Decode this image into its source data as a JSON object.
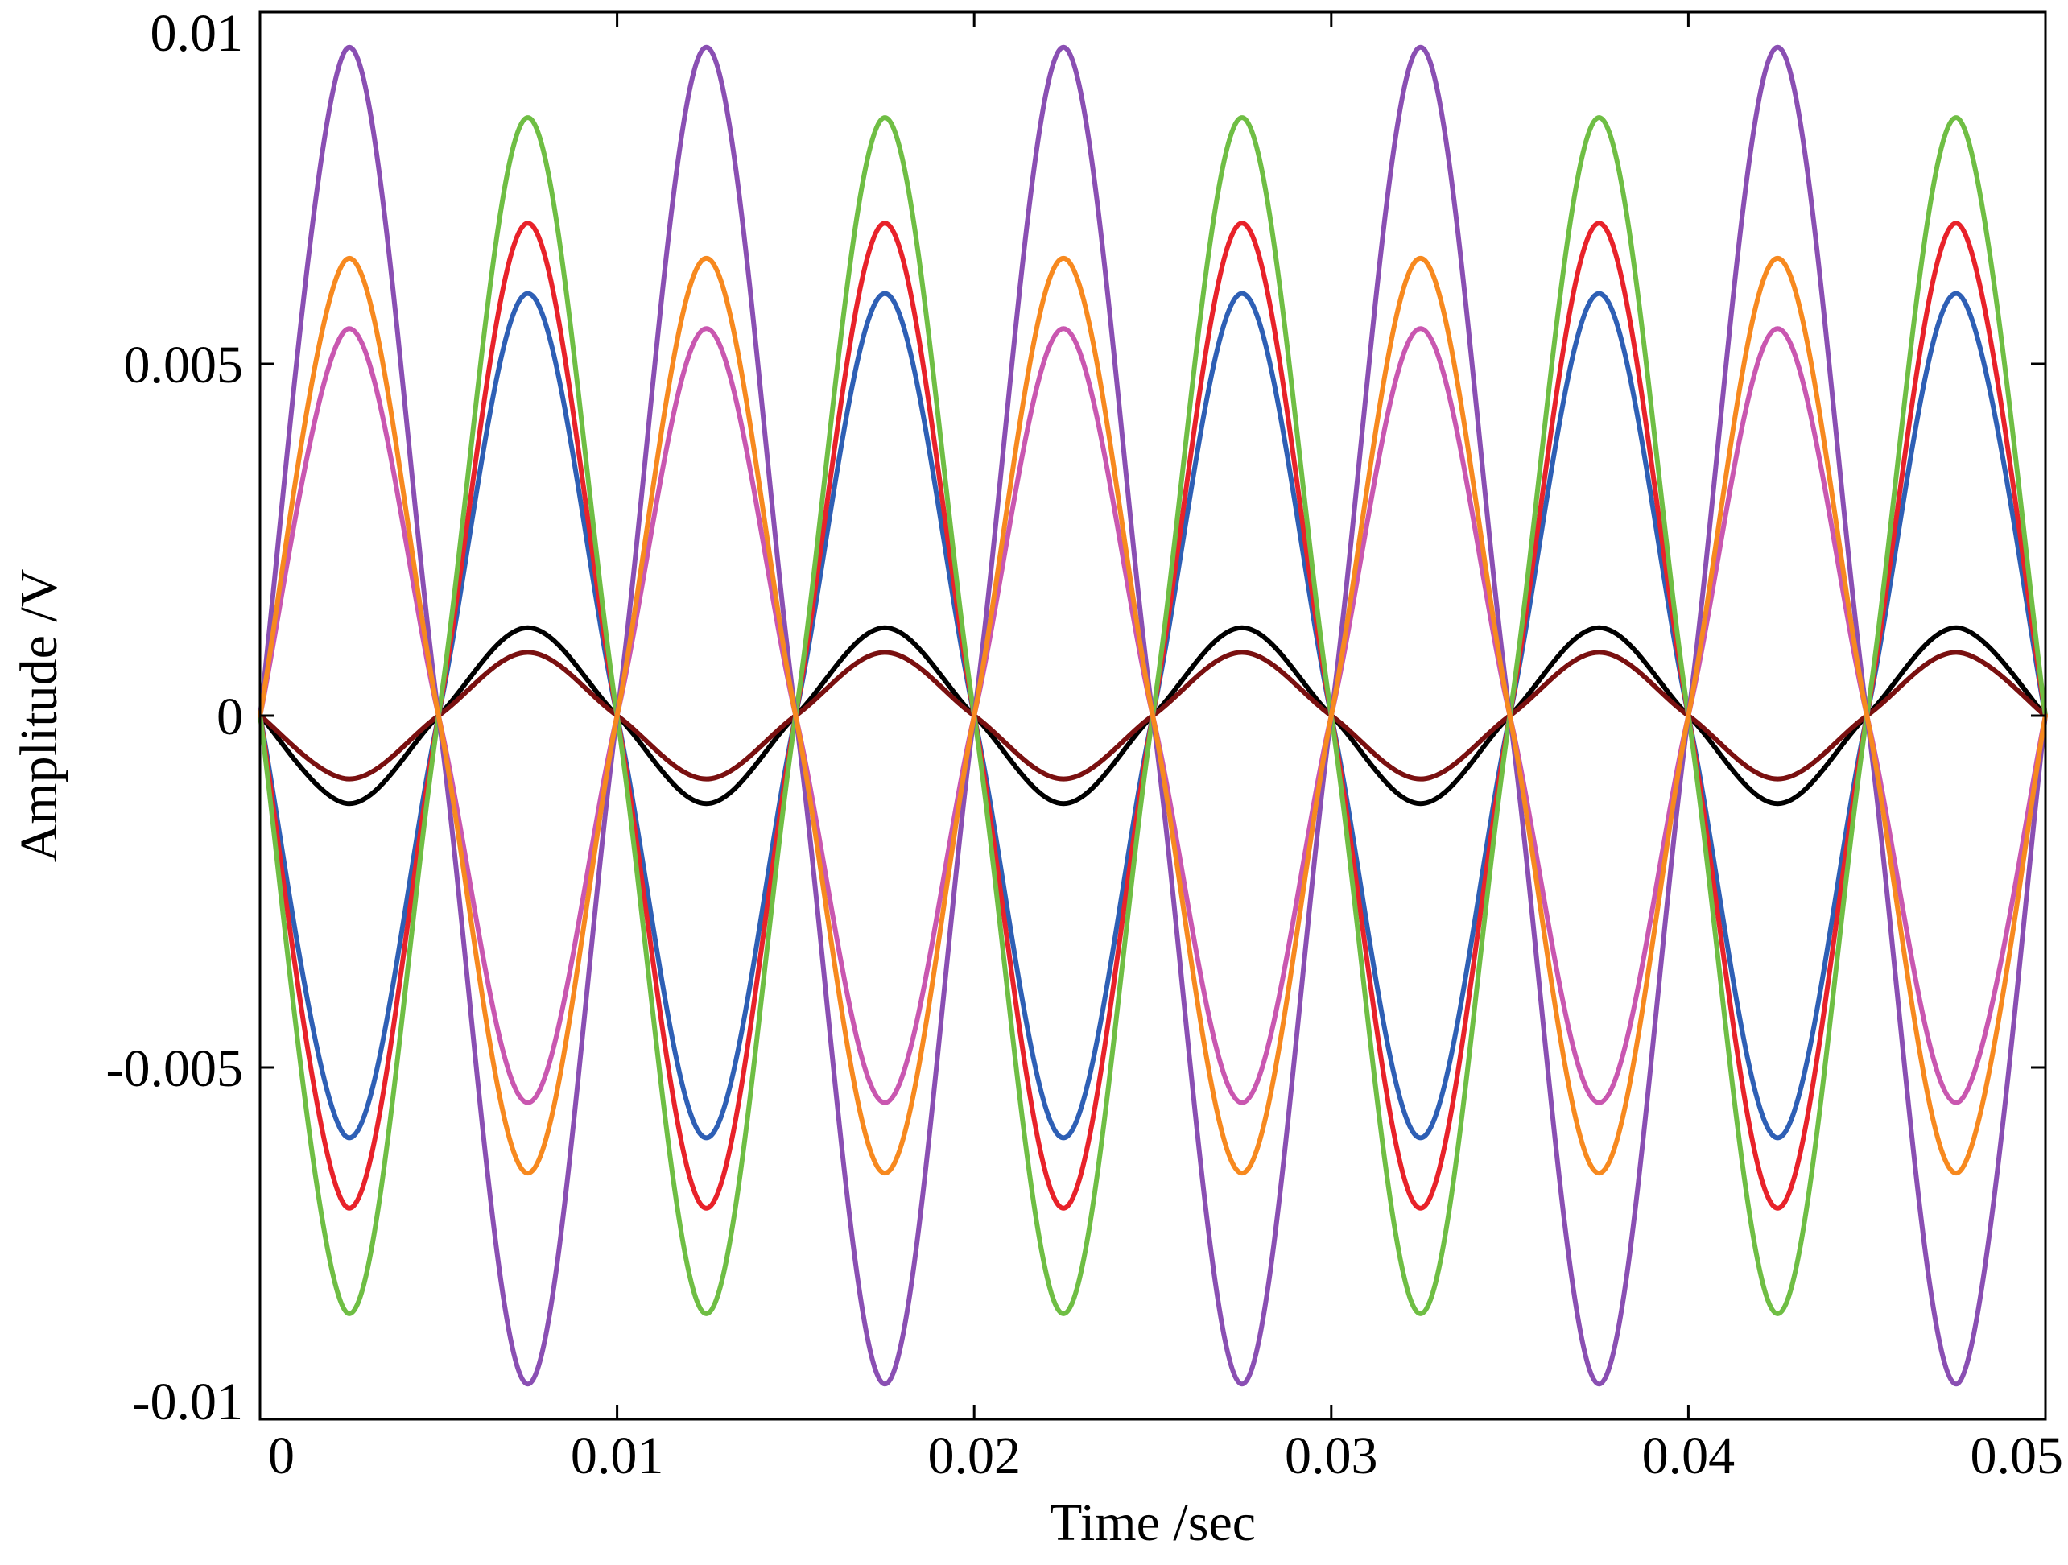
{
  "chart_data": {
    "type": "line",
    "title": "",
    "xlabel": "Time /sec",
    "ylabel": "Amplitude /V",
    "xlim": [
      0,
      0.05
    ],
    "ylim": [
      -0.01,
      0.01
    ],
    "xticks": [
      0,
      0.01,
      0.02,
      0.03,
      0.04,
      0.05
    ],
    "xtick_labels": [
      "0",
      "0.01",
      "0.02",
      "0.03",
      "0.04",
      "0.05"
    ],
    "yticks": [
      0.01,
      0.005,
      0,
      -0.005,
      -0.01
    ],
    "ytick_labels": [
      "0.01",
      "0.005",
      "0",
      "-0.005",
      "-0.01"
    ],
    "grid": false,
    "legend": "none",
    "x": [
      0,
      0.0025,
      0.005,
      0.0075,
      0.01,
      0.0125,
      0.015,
      0.0175,
      0.02,
      0.0225,
      0.025,
      0.0275,
      0.03,
      0.0325,
      0.035,
      0.0375,
      0.04,
      0.0425,
      0.045,
      0.0475,
      0.05
    ],
    "series": [
      {
        "color": "#000000",
        "values": [
          0,
          -0.00125,
          0,
          0.00125,
          0,
          -0.00125,
          0,
          0.00125,
          0,
          -0.00125,
          0,
          0.00125,
          0,
          -0.00125,
          0,
          0.00125,
          0,
          -0.00125,
          0,
          0.00125,
          0
        ]
      },
      {
        "color": "#7a1010",
        "values": [
          0,
          -0.0009,
          0,
          0.0009,
          0,
          -0.0009,
          0,
          0.0009,
          0,
          -0.0009,
          0,
          0.0009,
          0,
          -0.0009,
          0,
          0.0009,
          0,
          -0.0009,
          0,
          0.0009,
          0
        ]
      },
      {
        "color": "#2e5fb5",
        "values": [
          0,
          -0.006,
          0,
          0.006,
          0,
          -0.006,
          0,
          0.006,
          0,
          -0.006,
          0,
          0.006,
          0,
          -0.006,
          0,
          0.006,
          0,
          -0.006,
          0,
          0.006,
          0
        ]
      },
      {
        "color": "#e8222a",
        "values": [
          0,
          -0.007,
          0,
          0.007,
          0,
          -0.007,
          0,
          0.007,
          0,
          -0.007,
          0,
          0.007,
          0,
          -0.007,
          0,
          0.007,
          0,
          -0.007,
          0,
          0.007,
          0
        ]
      },
      {
        "color": "#6fbe44",
        "values": [
          0,
          -0.0085,
          0,
          0.0085,
          0,
          -0.0085,
          0,
          0.0085,
          0,
          -0.0085,
          0,
          0.0085,
          0,
          -0.0085,
          0,
          0.0085,
          0,
          -0.0085,
          0,
          0.0085,
          0
        ]
      },
      {
        "color": "#c957b0",
        "values": [
          0,
          0.0055,
          0,
          -0.0055,
          0,
          0.0055,
          0,
          -0.0055,
          0,
          0.0055,
          0,
          -0.0055,
          0,
          0.0055,
          0,
          -0.0055,
          0,
          0.0055,
          0,
          -0.0055,
          0
        ]
      },
      {
        "color": "#8a4fb3",
        "values": [
          0,
          0.0095,
          0,
          -0.0095,
          0,
          0.0095,
          0,
          -0.0095,
          0,
          0.0095,
          0,
          -0.0095,
          0,
          0.0095,
          0,
          -0.0095,
          0,
          0.0095,
          0,
          -0.0095,
          0
        ]
      },
      {
        "color": "#f7891f",
        "values": [
          0,
          0.0065,
          0,
          -0.0065,
          0,
          0.0065,
          0,
          -0.0065,
          0,
          0.0065,
          0,
          -0.0065,
          0,
          0.0065,
          0,
          -0.0065,
          0,
          0.0065,
          0,
          -0.0065,
          0
        ]
      }
    ]
  }
}
